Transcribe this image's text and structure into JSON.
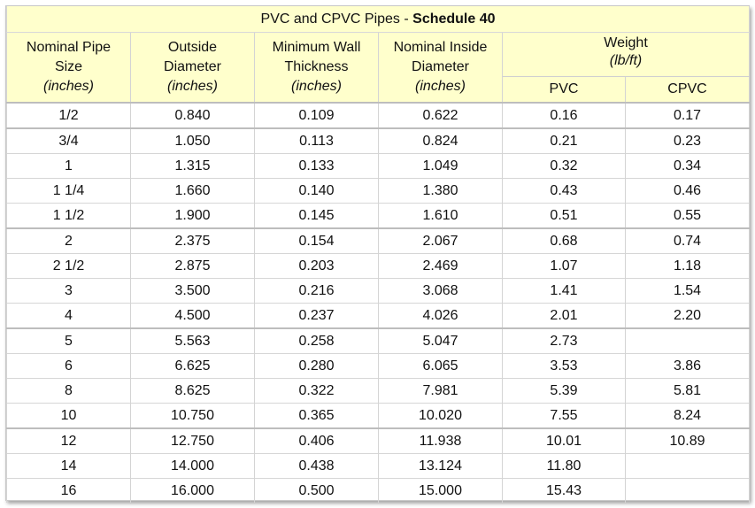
{
  "title": {
    "prefix": "PVC and CPVC Pipes - ",
    "emphasis": "Schedule 40"
  },
  "headers": {
    "nominal_size": [
      "Nominal Pipe",
      "Size",
      "(inches)"
    ],
    "outside_diameter": [
      "Outside",
      "Diameter",
      "(inches)"
    ],
    "min_wall": [
      "Minimum Wall",
      "Thickness",
      "(inches)"
    ],
    "nominal_inside": [
      "Nominal Inside",
      "Diameter",
      "(inches)"
    ],
    "weight": [
      "Weight",
      "(lb/ft)"
    ],
    "pvc": "PVC",
    "cpvc": "CPVC"
  },
  "colors": {
    "header_background": "#ffffcc",
    "row_background": "#ffffff"
  },
  "rows": [
    [
      "1/2",
      "0.840",
      "0.109",
      "0.622",
      "0.16",
      "0.17"
    ],
    [
      "3/4",
      "1.050",
      "0.113",
      "0.824",
      "0.21",
      "0.23"
    ],
    [
      "1",
      "1.315",
      "0.133",
      "1.049",
      "0.32",
      "0.34"
    ],
    [
      "1 1/4",
      "1.660",
      "0.140",
      "1.380",
      "0.43",
      "0.46"
    ],
    [
      "1 1/2",
      "1.900",
      "0.145",
      "1.610",
      "0.51",
      "0.55"
    ],
    [
      "2",
      "2.375",
      "0.154",
      "2.067",
      "0.68",
      "0.74"
    ],
    [
      "2 1/2",
      "2.875",
      "0.203",
      "2.469",
      "1.07",
      "1.18"
    ],
    [
      "3",
      "3.500",
      "0.216",
      "3.068",
      "1.41",
      "1.54"
    ],
    [
      "4",
      "4.500",
      "0.237",
      "4.026",
      "2.01",
      "2.20"
    ],
    [
      "5",
      "5.563",
      "0.258",
      "5.047",
      "2.73",
      ""
    ],
    [
      "6",
      "6.625",
      "0.280",
      "6.065",
      "3.53",
      "3.86"
    ],
    [
      "8",
      "8.625",
      "0.322",
      "7.981",
      "5.39",
      "5.81"
    ],
    [
      "10",
      "10.750",
      "0.365",
      "10.020",
      "7.55",
      "8.24"
    ],
    [
      "12",
      "12.750",
      "0.406",
      "11.938",
      "10.01",
      "10.89"
    ],
    [
      "14",
      "14.000",
      "0.438",
      "13.124",
      "11.80",
      ""
    ],
    [
      "16",
      "16.000",
      "0.500",
      "15.000",
      "15.43",
      ""
    ]
  ]
}
